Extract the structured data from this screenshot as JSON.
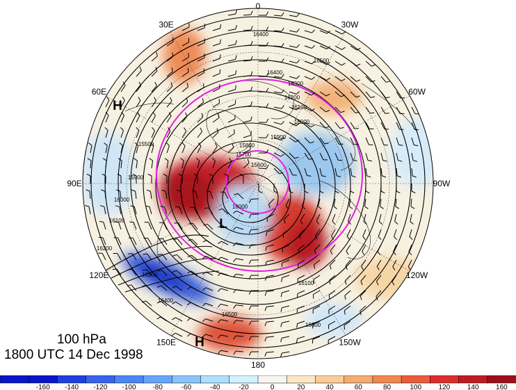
{
  "map": {
    "projection": "north-polar-stereographic",
    "level": "100 hPa",
    "datetime": "1800 UTC 14 Dec 1998",
    "longitude_labels": [
      {
        "text": "0",
        "lon": 0
      },
      {
        "text": "30W",
        "lon": -30
      },
      {
        "text": "60W",
        "lon": -60
      },
      {
        "text": "90W",
        "lon": -90
      },
      {
        "text": "120W",
        "lon": -120
      },
      {
        "text": "150W",
        "lon": -150
      },
      {
        "text": "180",
        "lon": 180
      },
      {
        "text": "150E",
        "lon": 150
      },
      {
        "text": "120E",
        "lon": 120
      },
      {
        "text": "90E",
        "lon": 90
      },
      {
        "text": "60E",
        "lon": 60
      },
      {
        "text": "30E",
        "lon": 30
      }
    ],
    "pressure_centers": [
      {
        "text": "H",
        "kind": "high"
      },
      {
        "text": "L",
        "kind": "low"
      },
      {
        "text": "H",
        "kind": "high"
      }
    ],
    "contour_labels": [
      "16400",
      "16500",
      "16600",
      "16400",
      "16300",
      "16200",
      "16100",
      "16000",
      "15900",
      "15800",
      "15700",
      "15600",
      "15500",
      "15900",
      "16000",
      "16100",
      "16200",
      "16300",
      "16400",
      "16500",
      "16600",
      "16100",
      "16000"
    ],
    "highlight_color": "#e020e0"
  },
  "colorbar": {
    "labels": [
      "-160",
      "-140",
      "-120",
      "-100",
      "-80",
      "-60",
      "-40",
      "-20",
      "0",
      "20",
      "40",
      "60",
      "80",
      "100",
      "120",
      "140",
      "160"
    ],
    "colors": [
      "#0a14c8",
      "#1f3fe0",
      "#3763ee",
      "#4c86f6",
      "#66a6fa",
      "#88c4fc",
      "#ace0fe",
      "#d2f2fe",
      "#f8f6f0",
      "#fbe7c6",
      "#f9cc98",
      "#f6ab72",
      "#f2874f",
      "#eb5b3c",
      "#dc2f2c",
      "#c01b24",
      "#9c0f1a"
    ]
  }
}
